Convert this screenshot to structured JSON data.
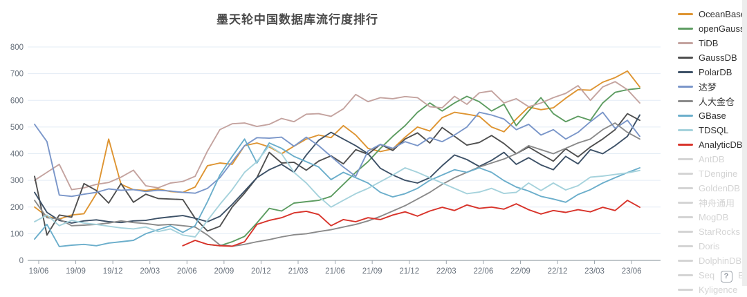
{
  "chart_data": {
    "type": "line",
    "title": "墨天轮中国数据库流行度排行",
    "y_axis": {
      "min": 0,
      "max": 800,
      "tick_step": 100,
      "tick_labels": [
        "0",
        "100",
        "200",
        "300",
        "400",
        "500",
        "600",
        "700",
        "800"
      ]
    },
    "x_axis": {
      "months_total": 50,
      "tick_month_indexes": [
        0,
        3,
        6,
        9,
        12,
        15,
        18,
        21,
        24,
        27,
        30,
        33,
        36,
        39,
        42,
        45,
        48
      ],
      "tick_labels": [
        "19/06",
        "19/09",
        "19/12",
        "20/03",
        "20/06",
        "20/09",
        "20/12",
        "21/03",
        "21/06",
        "21/09",
        "21/12",
        "22/03",
        "22/06",
        "22/09",
        "22/12",
        "23/03",
        "23/06"
      ]
    },
    "legend_position": "right",
    "style": {
      "grid_color": "#e3ecf5",
      "axis_color": "#9aa3ab",
      "label_color": "#68717c",
      "disabled_color": "#d4d4d4",
      "title_color": "#4a4a4a"
    },
    "series": [
      {
        "name": "OceanBase",
        "color": "#de9431",
        "enabled": true,
        "values": [
          200,
          165,
          155,
          170,
          175,
          250,
          455,
          285,
          265,
          262,
          268,
          258,
          255,
          275,
          355,
          365,
          360,
          430,
          440,
          425,
          400,
          428,
          455,
          470,
          460,
          505,
          470,
          420,
          408,
          418,
          462,
          500,
          485,
          535,
          555,
          548,
          540,
          500,
          482,
          530,
          575,
          565,
          572,
          608,
          640,
          638,
          668,
          685,
          710,
          650
        ]
      },
      {
        "name": "openGauss",
        "color": "#5d9c61",
        "enabled": true,
        "values": [
          null,
          null,
          null,
          null,
          null,
          null,
          null,
          null,
          null,
          null,
          null,
          null,
          null,
          null,
          60,
          55,
          70,
          90,
          140,
          195,
          185,
          215,
          220,
          225,
          240,
          285,
          330,
          370,
          420,
          465,
          505,
          555,
          590,
          560,
          590,
          615,
          595,
          560,
          585,
          505,
          560,
          610,
          550,
          520,
          540,
          525,
          590,
          630,
          640,
          645
        ]
      },
      {
        "name": "TiDB",
        "color": "#c4a39f",
        "enabled": true,
        "values": [
          300,
          330,
          360,
          265,
          272,
          285,
          292,
          312,
          338,
          280,
          272,
          290,
          296,
          315,
          410,
          490,
          512,
          515,
          502,
          510,
          532,
          520,
          548,
          550,
          540,
          568,
          622,
          595,
          610,
          606,
          614,
          610,
          576,
          572,
          615,
          585,
          628,
          635,
          590,
          606,
          576,
          590,
          610,
          626,
          655,
          600,
          650,
          670,
          640,
          590
        ]
      },
      {
        "name": "GaussDB",
        "color": "#4f4f4f",
        "enabled": true,
        "values": [
          315,
          95,
          170,
          162,
          288,
          262,
          215,
          288,
          218,
          248,
          232,
          230,
          228,
          158,
          110,
          128,
          200,
          252,
          310,
          405,
          365,
          368,
          338,
          372,
          392,
          362,
          415,
          398,
          435,
          412,
          455,
          478,
          440,
          498,
          465,
          432,
          442,
          468,
          438,
          400,
          425,
          398,
          372,
          418,
          388,
          425,
          455,
          490,
          550,
          525
        ]
      },
      {
        "name": "PolarDB",
        "color": "#3d5167",
        "enabled": true,
        "values": [
          255,
          180,
          150,
          140,
          148,
          152,
          145,
          142,
          148,
          150,
          158,
          163,
          168,
          158,
          145,
          165,
          210,
          260,
          310,
          340,
          360,
          330,
          395,
          450,
          480,
          455,
          430,
          400,
          345,
          320,
          300,
          290,
          310,
          355,
          395,
          378,
          352,
          375,
          405,
          360,
          385,
          358,
          340,
          390,
          362,
          415,
          400,
          430,
          465,
          545
        ]
      },
      {
        "name": "达梦",
        "color": "#7a96c9",
        "enabled": true,
        "values": [
          510,
          445,
          245,
          240,
          248,
          255,
          268,
          263,
          265,
          258,
          263,
          260,
          255,
          252,
          270,
          310,
          370,
          430,
          460,
          458,
          462,
          428,
          462,
          430,
          390,
          350,
          315,
          410,
          435,
          420,
          445,
          430,
          460,
          445,
          470,
          500,
          555,
          545,
          530,
          490,
          510,
          470,
          490,
          455,
          480,
          520,
          555,
          495,
          525,
          465
        ]
      },
      {
        "name": "人大金仓",
        "color": "#8a8a8a",
        "enabled": true,
        "values": [
          225,
          160,
          155,
          130,
          132,
          135,
          140,
          148,
          142,
          138,
          132,
          135,
          130,
          125,
          95,
          58,
          53,
          60,
          70,
          78,
          88,
          96,
          100,
          108,
          115,
          125,
          135,
          148,
          165,
          185,
          205,
          230,
          255,
          285,
          310,
          330,
          350,
          365,
          380,
          400,
          430,
          415,
          400,
          420,
          440,
          455,
          490,
          515,
          480,
          455
        ]
      },
      {
        "name": "GBase",
        "color": "#6baecb",
        "enabled": true,
        "values": [
          80,
          135,
          52,
          57,
          60,
          55,
          65,
          70,
          75,
          100,
          115,
          130,
          105,
          130,
          220,
          320,
          390,
          455,
          365,
          440,
          420,
          390,
          370,
          350,
          303,
          330,
          310,
          290,
          255,
          238,
          250,
          270,
          300,
          320,
          340,
          330,
          347,
          330,
          299,
          275,
          260,
          240,
          230,
          218,
          247,
          265,
          290,
          310,
          329,
          347
        ]
      },
      {
        "name": "TDSQL",
        "color": "#a5d2dc",
        "enabled": true,
        "values": [
          145,
          170,
          130,
          150,
          140,
          135,
          128,
          122,
          118,
          125,
          108,
          118,
          95,
          88,
          150,
          210,
          265,
          330,
          370,
          430,
          400,
          330,
          290,
          240,
          200,
          225,
          250,
          270,
          295,
          320,
          347,
          330,
          310,
          290,
          270,
          250,
          256,
          270,
          251,
          255,
          290,
          262,
          290,
          264,
          280,
          312,
          316,
          322,
          328,
          337
        ]
      },
      {
        "name": "AnalyticDB",
        "color": "#d8332a",
        "enabled": true,
        "values": [
          null,
          null,
          null,
          null,
          null,
          null,
          null,
          null,
          null,
          null,
          null,
          null,
          55,
          75,
          60,
          55,
          53,
          70,
          135,
          150,
          160,
          178,
          184,
          172,
          130,
          153,
          145,
          160,
          153,
          170,
          182,
          166,
          185,
          199,
          187,
          208,
          195,
          200,
          192,
          212,
          190,
          174,
          187,
          180,
          190,
          182,
          199,
          187,
          225,
          199
        ]
      },
      {
        "name": "AntDB",
        "color": "#d4d4d4",
        "enabled": false,
        "values": null
      },
      {
        "name": "TDengine",
        "color": "#d4d4d4",
        "enabled": false,
        "values": null
      },
      {
        "name": "GoldenDB",
        "color": "#d4d4d4",
        "enabled": false,
        "values": null
      },
      {
        "name": "神舟通用",
        "color": "#d4d4d4",
        "enabled": false,
        "values": null
      },
      {
        "name": "MogDB",
        "color": "#d4d4d4",
        "enabled": false,
        "values": null
      },
      {
        "name": "StarRocks",
        "color": "#d4d4d4",
        "enabled": false,
        "values": null
      },
      {
        "name": "Doris",
        "color": "#d4d4d4",
        "enabled": false,
        "values": null
      },
      {
        "name": "DolphinDB",
        "color": "#d4d4d4",
        "enabled": false,
        "values": null
      },
      {
        "name": "SequoiaDB",
        "color": "#d4d4d4",
        "enabled": false,
        "values": null
      },
      {
        "name": "Kyligence",
        "color": "#d4d4d4",
        "enabled": false,
        "values": null
      }
    ]
  },
  "help_button": {
    "glyph": "?"
  }
}
